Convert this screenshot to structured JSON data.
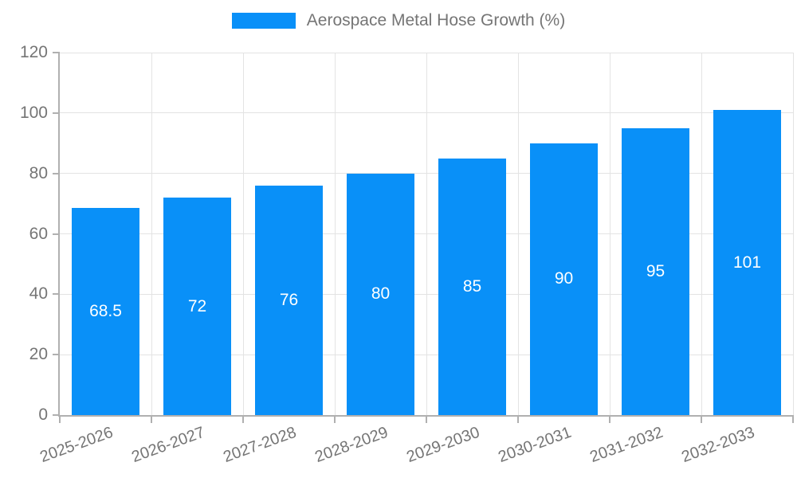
{
  "legend": {
    "label": "Aerospace Metal Hose Growth (%)"
  },
  "colors": {
    "bar": "#0990F8",
    "grid": "#e3e3e3",
    "axis": "#b0b0b0",
    "muted_text": "#757575",
    "bar_label_text": "#ffffff",
    "background": "#ffffff"
  },
  "chart_data": {
    "type": "bar",
    "title": "Aerospace Metal Hose Growth (%)",
    "categories": [
      "2025-2026",
      "2026-2027",
      "2027-2028",
      "2028-2029",
      "2029-2030",
      "2030-2031",
      "2031-2032",
      "2032-2033"
    ],
    "values": [
      68.5,
      72,
      76,
      80,
      85,
      90,
      95,
      101
    ],
    "bar_labels": [
      "68.5",
      "72",
      "76",
      "80",
      "85",
      "90",
      "95",
      "101"
    ],
    "xlabel": "",
    "ylabel": "",
    "ylim": [
      0,
      120
    ],
    "yticks": [
      0,
      20,
      40,
      60,
      80,
      100,
      120
    ],
    "grid": true,
    "legend_position": "top",
    "x_label_rotation_deg": -20
  }
}
